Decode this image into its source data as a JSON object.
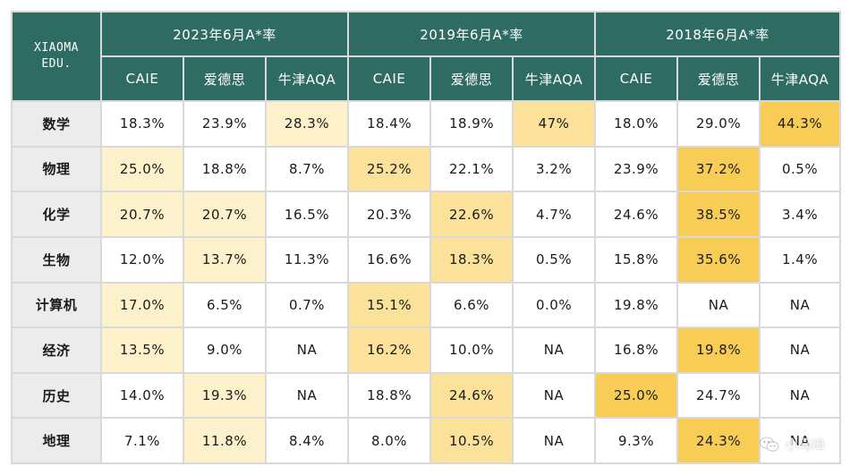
{
  "brand": {
    "line1": "XIAOMA",
    "line2": "EDU."
  },
  "groups": [
    {
      "label": "2023年6月A*率"
    },
    {
      "label": "2019年6月A*率"
    },
    {
      "label": "2018年6月A*率"
    }
  ],
  "columns": [
    "CAIE",
    "爱德思",
    "牛津AQA",
    "CAIE",
    "爱德思",
    "牛津AQA",
    "CAIE",
    "爱德思",
    "牛津AQA"
  ],
  "rows": [
    {
      "subject": "数学",
      "values": [
        "18.3%",
        "23.9%",
        "28.3%",
        "18.4%",
        "18.9%",
        "47%",
        "18.0%",
        "29.0%",
        "44.3%"
      ]
    },
    {
      "subject": "物理",
      "values": [
        "25.0%",
        "18.8%",
        "8.7%",
        "25.2%",
        "22.1%",
        "3.2%",
        "23.9%",
        "37.2%",
        "0.5%"
      ]
    },
    {
      "subject": "化学",
      "values": [
        "20.7%",
        "20.7%",
        "16.5%",
        "20.3%",
        "22.6%",
        "4.7%",
        "24.6%",
        "38.5%",
        "3.4%"
      ]
    },
    {
      "subject": "生物",
      "values": [
        "12.0%",
        "13.7%",
        "11.3%",
        "16.6%",
        "18.3%",
        "0.5%",
        "15.8%",
        "35.6%",
        "1.4%"
      ]
    },
    {
      "subject": "计算机",
      "values": [
        "17.0%",
        "6.5%",
        "0.7%",
        "15.1%",
        "6.6%",
        "0.0%",
        "19.8%",
        "NA",
        "NA"
      ]
    },
    {
      "subject": "经济",
      "values": [
        "13.5%",
        "9.0%",
        "NA",
        "16.2%",
        "10.0%",
        "NA",
        "16.8%",
        "19.8%",
        "NA"
      ]
    },
    {
      "subject": "历史",
      "values": [
        "14.0%",
        "19.3%",
        "NA",
        "18.8%",
        "24.6%",
        "NA",
        "25.0%",
        "24.7%",
        "NA"
      ]
    },
    {
      "subject": "地理",
      "values": [
        "7.1%",
        "11.8%",
        "8.4%",
        "8.0%",
        "10.5%",
        "NA",
        "9.3%",
        "24.3%",
        "NA"
      ]
    }
  ],
  "highlight_levels": [
    [
      0,
      0,
      1,
      0,
      0,
      2,
      0,
      0,
      3
    ],
    [
      1,
      0,
      0,
      2,
      0,
      0,
      0,
      3,
      0
    ],
    [
      1,
      1,
      0,
      0,
      2,
      0,
      0,
      3,
      0
    ],
    [
      0,
      1,
      0,
      0,
      2,
      0,
      0,
      3,
      0
    ],
    [
      1,
      0,
      0,
      2,
      0,
      0,
      0,
      0,
      0
    ],
    [
      1,
      0,
      0,
      2,
      0,
      0,
      0,
      3,
      0
    ],
    [
      0,
      1,
      0,
      0,
      2,
      0,
      3,
      0,
      0
    ],
    [
      0,
      1,
      0,
      0,
      2,
      0,
      0,
      3,
      0
    ]
  ],
  "colors": {
    "header_bg": "#2e6b62",
    "row_head_bg": "#ececec",
    "level_0": "#ffffff",
    "level_1": "#fdf1cc",
    "level_2": "#fbe19a",
    "level_3": "#f8cd55"
  },
  "watermark": {
    "text": "小马IB",
    "icon": "wechat-icon"
  }
}
